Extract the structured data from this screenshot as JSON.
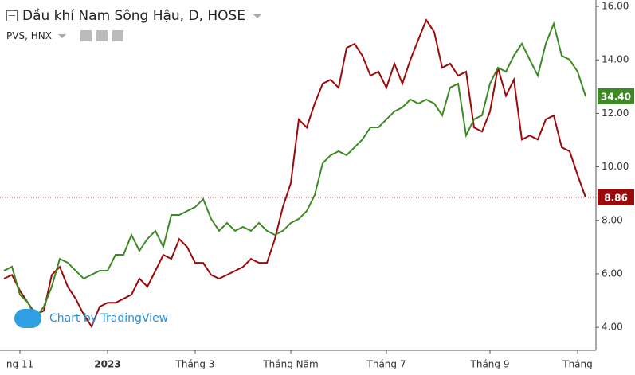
{
  "chart_data": {
    "type": "line",
    "title": "Dầu khí Nam Sông Hậu, D, HOSE",
    "subtitle": "PVS, HNX",
    "watermark": "Chart by TradingView",
    "categories": [
      null,
      null,
      "ng 11",
      null,
      null,
      null,
      null,
      null,
      null,
      null,
      null,
      null,
      null,
      "2023",
      null,
      null,
      null,
      null,
      null,
      null,
      null,
      null,
      null,
      null,
      "Tháng 3",
      null,
      null,
      null,
      null,
      null,
      null,
      null,
      null,
      null,
      null,
      null,
      "Tháng Năm",
      null,
      null,
      null,
      null,
      null,
      null,
      null,
      null,
      null,
      null,
      null,
      "Tháng 7",
      null,
      null,
      null,
      null,
      null,
      null,
      null,
      null,
      null,
      null,
      null,
      null,
      "Tháng 9",
      null,
      null,
      null,
      null,
      null,
      null,
      null,
      null,
      null,
      null,
      "Tháng",
      null
    ],
    "ylim": [
      3.14,
      16.24
    ],
    "yticks": [
      {
        "value": 4,
        "label": "4.00"
      },
      {
        "value": 6,
        "label": "6.00"
      },
      {
        "value": 8,
        "label": "8.00"
      },
      {
        "value": 10,
        "label": "10.00"
      },
      {
        "value": 12,
        "label": "12.00"
      },
      {
        "value": 14,
        "label": "14.00"
      },
      {
        "value": 16,
        "label": "16.00"
      }
    ],
    "y2lim": [
      12.5,
      42.7
    ],
    "series": [
      {
        "name": "Dầu khí Nam Sông Hậu",
        "color": "#9b0a0a",
        "values": [
          5.82,
          5.96,
          5.37,
          4.92,
          4.48,
          4.62,
          5.96,
          6.26,
          5.52,
          5.07,
          4.48,
          4.03,
          4.77,
          4.92,
          4.92,
          5.07,
          5.22,
          5.82,
          5.52,
          6.11,
          6.71,
          6.56,
          7.3,
          7.0,
          6.41,
          6.41,
          5.96,
          5.82,
          5.96,
          6.11,
          6.26,
          6.56,
          6.41,
          6.41,
          7.3,
          8.5,
          9.39,
          11.77,
          11.47,
          12.37,
          13.11,
          13.26,
          12.96,
          14.45,
          14.6,
          14.15,
          13.41,
          13.56,
          12.96,
          13.86,
          13.11,
          14.0,
          14.75,
          15.49,
          15.04,
          13.71,
          13.86,
          13.41,
          13.56,
          11.47,
          11.32,
          12.07,
          13.71,
          12.66,
          13.26,
          11.02,
          11.17,
          11.02,
          11.77,
          11.92,
          10.73,
          10.58,
          9.69,
          8.86
        ],
        "value_labels": [
          null,
          null,
          null,
          null,
          null,
          null,
          null,
          null,
          null,
          null,
          null,
          null,
          null,
          null,
          null,
          null,
          null,
          null,
          null,
          null,
          null,
          null,
          null,
          null,
          null,
          null,
          null,
          null,
          null,
          null,
          null,
          null,
          null,
          null,
          null,
          null,
          null,
          null,
          null,
          null,
          null,
          null,
          null,
          null,
          null,
          null,
          null,
          null,
          null,
          null,
          null,
          null,
          null,
          null,
          null,
          null,
          null,
          null,
          null,
          null,
          null,
          null,
          null,
          null,
          null,
          null,
          null,
          null,
          null,
          null,
          null,
          null,
          null,
          "8.86"
        ]
      },
      {
        "name": "PVS, HNX",
        "color": "#3d8a25",
        "axis": "y2",
        "values": [
          19.36,
          19.71,
          17.3,
          16.62,
          15.25,
          16.28,
          18.0,
          20.39,
          20.05,
          19.36,
          18.68,
          19.02,
          19.36,
          19.36,
          20.74,
          20.74,
          22.45,
          21.08,
          22.11,
          22.8,
          21.42,
          24.17,
          24.17,
          24.51,
          24.85,
          25.54,
          23.83,
          22.8,
          23.48,
          22.8,
          23.14,
          22.8,
          23.48,
          22.8,
          22.45,
          22.8,
          23.48,
          23.83,
          24.51,
          25.88,
          28.63,
          29.32,
          29.66,
          29.32,
          30.0,
          30.69,
          31.72,
          31.72,
          32.41,
          33.09,
          33.44,
          34.12,
          33.78,
          34.12,
          33.78,
          32.75,
          35.15,
          35.49,
          31.03,
          32.41,
          32.75,
          35.49,
          36.87,
          36.52,
          37.9,
          38.93,
          37.55,
          36.18,
          38.93,
          40.64,
          37.9,
          37.55,
          36.52,
          34.4
        ],
        "value_labels": [
          null,
          null,
          null,
          null,
          null,
          null,
          null,
          null,
          null,
          null,
          null,
          null,
          null,
          null,
          null,
          null,
          null,
          null,
          null,
          null,
          null,
          null,
          null,
          null,
          null,
          null,
          null,
          null,
          null,
          null,
          null,
          null,
          null,
          null,
          null,
          null,
          null,
          null,
          null,
          null,
          null,
          null,
          null,
          null,
          null,
          null,
          null,
          null,
          null,
          null,
          null,
          null,
          null,
          null,
          null,
          null,
          null,
          null,
          null,
          null,
          null,
          null,
          null,
          null,
          null,
          null,
          null,
          null,
          null,
          null,
          null,
          null,
          null,
          "34.40"
        ]
      }
    ]
  }
}
